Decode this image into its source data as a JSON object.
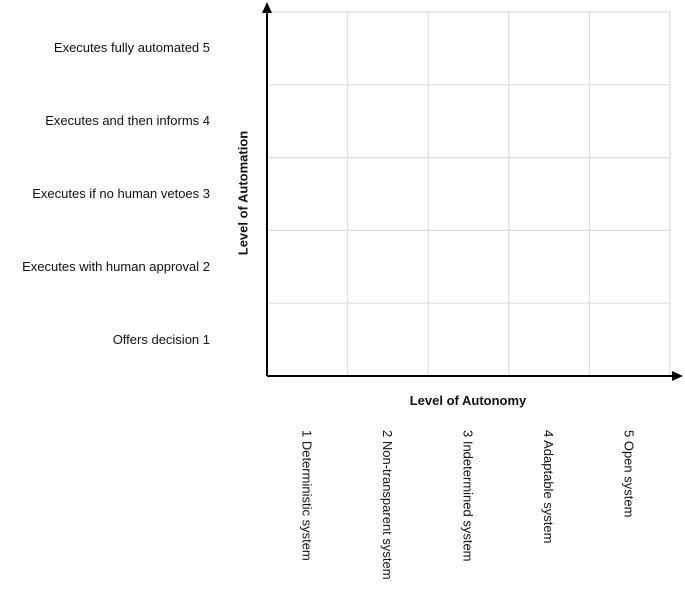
{
  "chart_data": {
    "type": "grid-matrix",
    "xlabel": "Level of Autonomy",
    "ylabel": "Level of Automation",
    "x_categories": [
      "1  Deterministic system",
      "2  Non-transparent  system",
      "3  Indetermined  system",
      "4  Adaptable  system",
      "5  Open  system"
    ],
    "y_categories": [
      "Offers decision  1",
      "Executes with human approval  2",
      "Executes  if no human vetoes  3",
      "Executes  and then informs  4",
      "Executes  fully automated  5"
    ],
    "grid": true,
    "colors": {
      "grid": "#dddddd",
      "axis": "#000000"
    }
  }
}
